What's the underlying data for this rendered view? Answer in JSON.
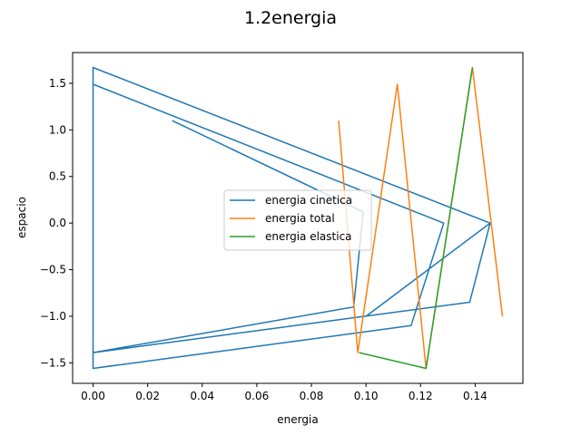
{
  "chart_data": {
    "type": "line",
    "title": "1.2energia",
    "xlabel": "energia",
    "ylabel": "espacio",
    "xlim": [
      -0.0075,
      0.1575
    ],
    "ylim": [
      -1.72,
      1.83
    ],
    "xticks": [
      {
        "value": 0.0,
        "label": "0.00"
      },
      {
        "value": 0.02,
        "label": "0.02"
      },
      {
        "value": 0.04,
        "label": "0.04"
      },
      {
        "value": 0.06,
        "label": "0.06"
      },
      {
        "value": 0.08,
        "label": "0.08"
      },
      {
        "value": 0.1,
        "label": "0.10"
      },
      {
        "value": 0.12,
        "label": "0.12"
      },
      {
        "value": 0.14,
        "label": "0.14"
      }
    ],
    "yticks": [
      {
        "value": -1.5,
        "label": "−1.5"
      },
      {
        "value": -1.0,
        "label": "−1.0"
      },
      {
        "value": -0.5,
        "label": "−0.5"
      },
      {
        "value": 0.0,
        "label": "0.0"
      },
      {
        "value": 0.5,
        "label": "0.5"
      },
      {
        "value": 1.0,
        "label": "1.0"
      },
      {
        "value": 1.5,
        "label": "1.5"
      }
    ],
    "grid": false,
    "legend_position": "center",
    "series": [
      {
        "name": "energia cinetica",
        "color": "#1f77b4",
        "x": [
          0.029,
          0.099,
          0.0955,
          0.0,
          0.0,
          0.1285,
          0.1165,
          0.0,
          0.0,
          0.1455,
          0.138,
          0.0,
          0.0,
          0.1285,
          0.1165,
          0.0,
          0.0,
          0.1455,
          0.1,
          0.1
        ],
        "y": [
          1.1,
          0.12,
          -0.9,
          -1.39,
          1.49,
          0.0,
          -1.1,
          -1.56,
          1.67,
          0.0,
          -0.85,
          -1.39,
          1.49,
          0.0,
          -1.1,
          -1.56,
          1.67,
          0.0,
          -1.0,
          -1.0
        ]
      },
      {
        "name": "energia total",
        "color": "#ff7f0e",
        "x": [
          0.09,
          0.097,
          0.1115,
          0.122,
          0.139,
          0.15
        ],
        "y": [
          1.1,
          -1.39,
          1.49,
          -1.56,
          1.67,
          -1.0
        ]
      },
      {
        "name": "energia elastica",
        "color": "#2ca02c",
        "x": [
          0.0975,
          0.122,
          0.139
        ],
        "y": [
          -1.39,
          -1.56,
          1.67
        ]
      }
    ]
  }
}
